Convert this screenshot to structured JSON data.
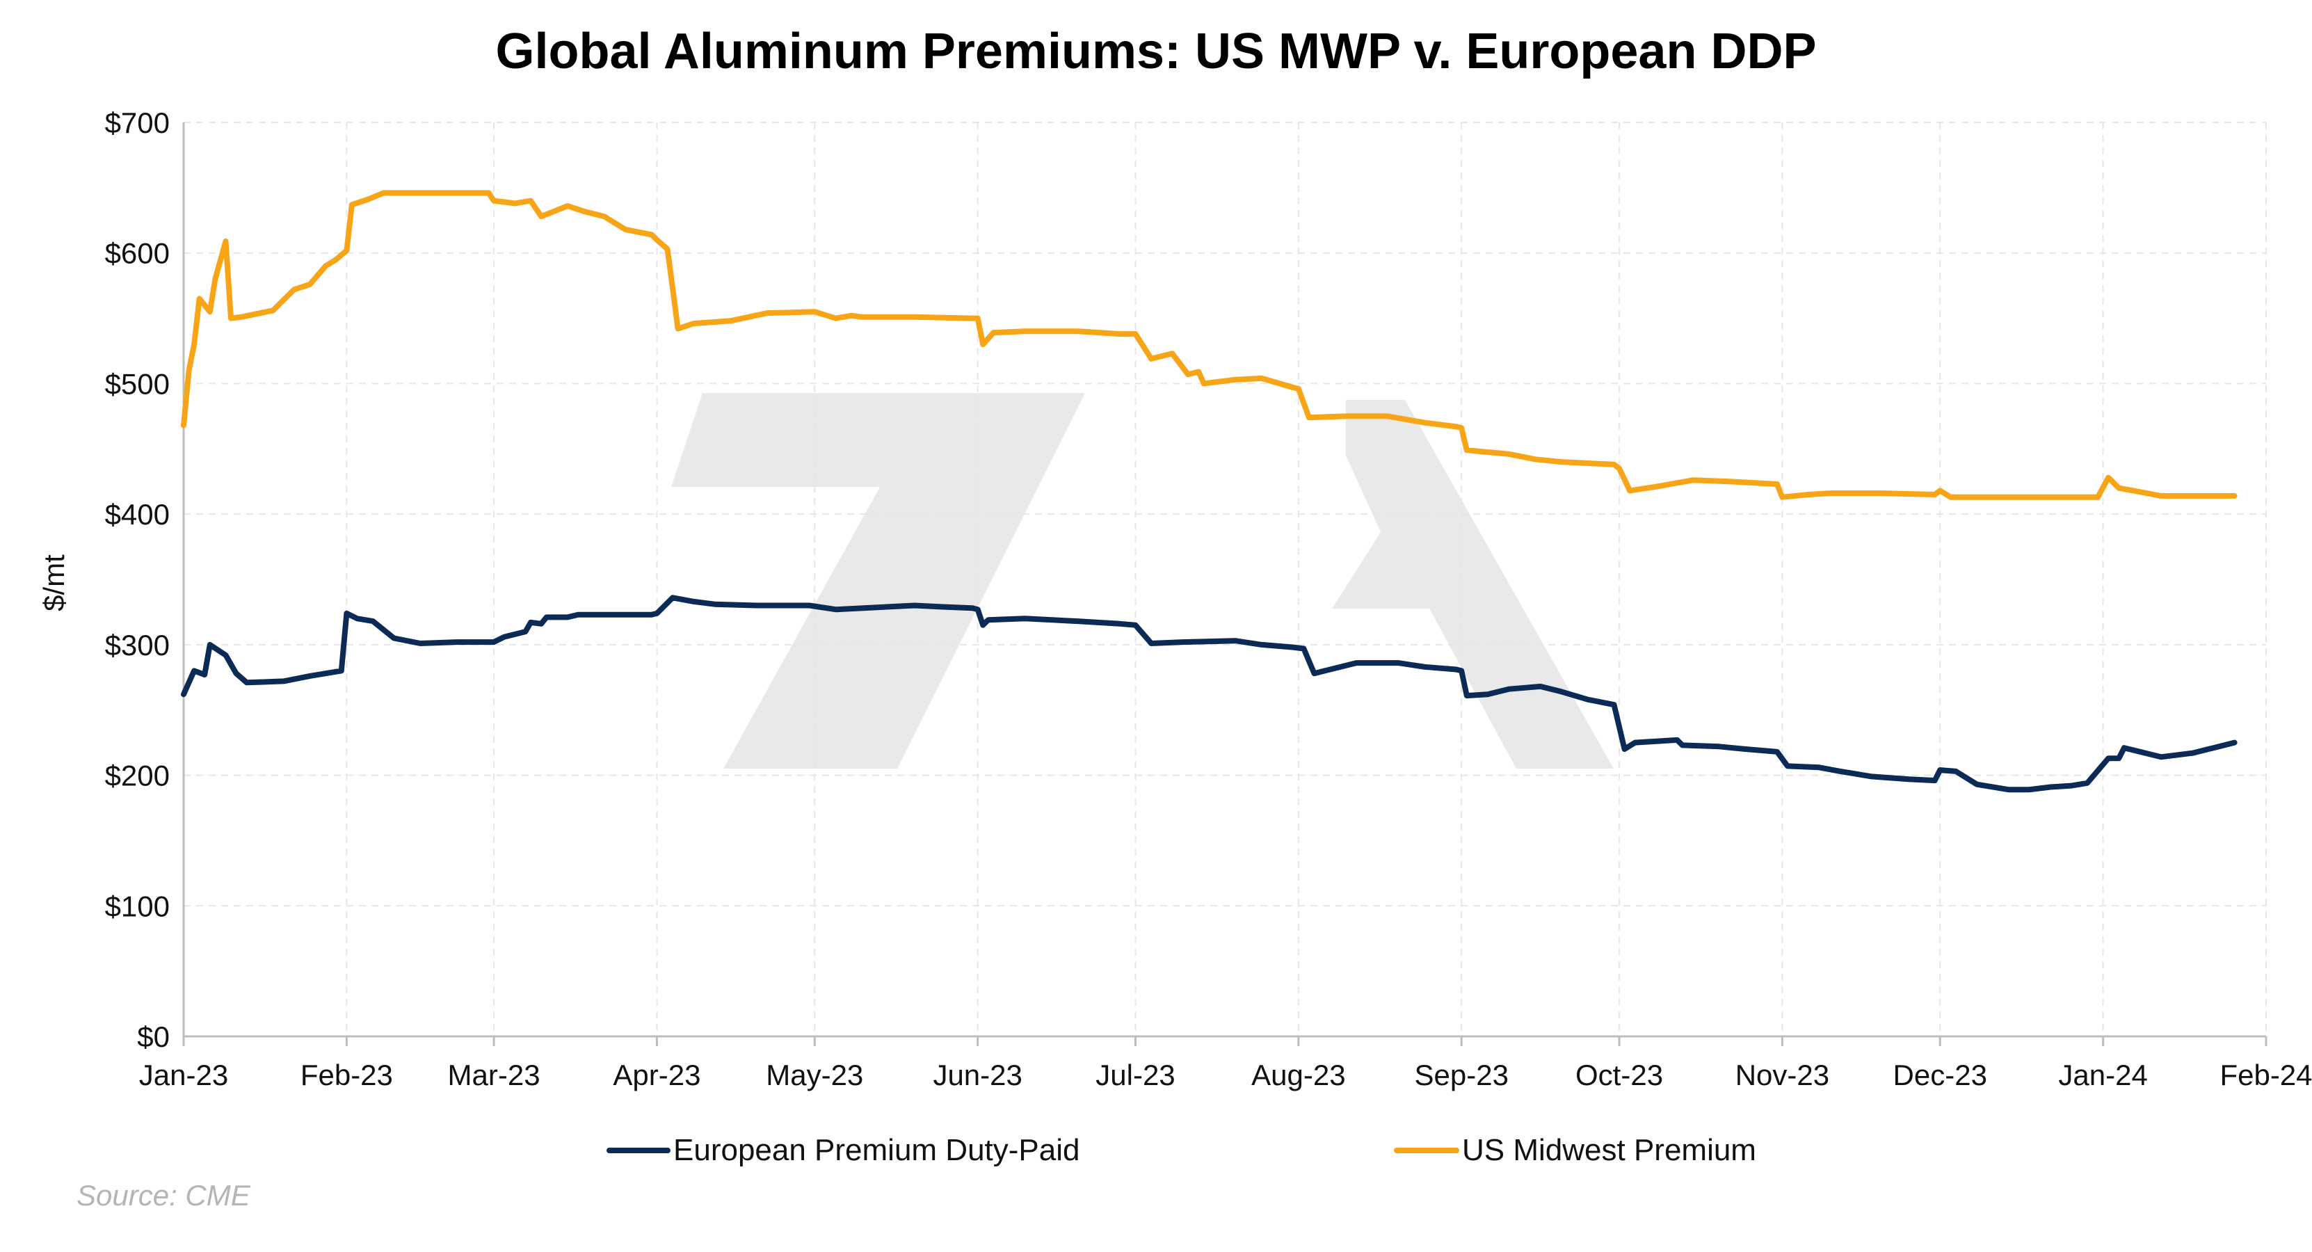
{
  "chart_data": {
    "type": "line",
    "title": "Global Aluminum Premiums: US MWP v. European DDP",
    "ylabel": "$/mt",
    "xlabel": "",
    "ylim": [
      0,
      700
    ],
    "y_ticks": [
      0,
      100,
      200,
      300,
      400,
      500,
      600,
      700
    ],
    "y_tick_labels": [
      "$0",
      "$100",
      "$200",
      "$300",
      "$400",
      "$500",
      "$600",
      "$700"
    ],
    "x_ticks": [
      "2023-01-01",
      "2023-02-01",
      "2023-03-01",
      "2023-04-01",
      "2023-05-01",
      "2023-06-01",
      "2023-07-01",
      "2023-08-01",
      "2023-09-01",
      "2023-10-01",
      "2023-11-01",
      "2023-12-01",
      "2024-01-01",
      "2024-02-01"
    ],
    "x_tick_labels": [
      "Jan-23",
      "Feb-23",
      "Mar-23",
      "Apr-23",
      "May-23",
      "Jun-23",
      "Jul-23",
      "Aug-23",
      "Sep-23",
      "Oct-23",
      "Nov-23",
      "Dec-23",
      "Jan-24",
      "Feb-24"
    ],
    "xlim": [
      "2023-01-01",
      "2024-02-01"
    ],
    "grid": true,
    "legend_position": "bottom",
    "series": [
      {
        "name": "European Premium Duty-Paid",
        "color": "#0b2a55",
        "points": [
          [
            "2023-01-01",
            262
          ],
          [
            "2023-01-03",
            280
          ],
          [
            "2023-01-05",
            277
          ],
          [
            "2023-01-06",
            300
          ],
          [
            "2023-01-09",
            292
          ],
          [
            "2023-01-11",
            278
          ],
          [
            "2023-01-13",
            271
          ],
          [
            "2023-01-20",
            272
          ],
          [
            "2023-01-25",
            276
          ],
          [
            "2023-01-31",
            280
          ],
          [
            "2023-02-01",
            324
          ],
          [
            "2023-02-03",
            320
          ],
          [
            "2023-02-06",
            318
          ],
          [
            "2023-02-10",
            305
          ],
          [
            "2023-02-15",
            301
          ],
          [
            "2023-02-22",
            302
          ],
          [
            "2023-02-28",
            302
          ],
          [
            "2023-03-01",
            302
          ],
          [
            "2023-03-03",
            306
          ],
          [
            "2023-03-07",
            310
          ],
          [
            "2023-03-08",
            317
          ],
          [
            "2023-03-10",
            316
          ],
          [
            "2023-03-11",
            321
          ],
          [
            "2023-03-15",
            321
          ],
          [
            "2023-03-17",
            323
          ],
          [
            "2023-03-25",
            323
          ],
          [
            "2023-03-31",
            323
          ],
          [
            "2023-04-01",
            324
          ],
          [
            "2023-04-04",
            336
          ],
          [
            "2023-04-08",
            333
          ],
          [
            "2023-04-12",
            331
          ],
          [
            "2023-04-20",
            330
          ],
          [
            "2023-04-30",
            330
          ],
          [
            "2023-05-05",
            327
          ],
          [
            "2023-05-15",
            329
          ],
          [
            "2023-05-20",
            330
          ],
          [
            "2023-05-25",
            329
          ],
          [
            "2023-05-31",
            328
          ],
          [
            "2023-06-01",
            327
          ],
          [
            "2023-06-02",
            315
          ],
          [
            "2023-06-03",
            319
          ],
          [
            "2023-06-10",
            320
          ],
          [
            "2023-06-20",
            318
          ],
          [
            "2023-06-28",
            316
          ],
          [
            "2023-07-01",
            315
          ],
          [
            "2023-07-04",
            301
          ],
          [
            "2023-07-10",
            302
          ],
          [
            "2023-07-20",
            303
          ],
          [
            "2023-07-25",
            300
          ],
          [
            "2023-07-31",
            298
          ],
          [
            "2023-08-02",
            297
          ],
          [
            "2023-08-04",
            278
          ],
          [
            "2023-08-08",
            282
          ],
          [
            "2023-08-12",
            286
          ],
          [
            "2023-08-20",
            286
          ],
          [
            "2023-08-25",
            283
          ],
          [
            "2023-08-31",
            281
          ],
          [
            "2023-09-01",
            280
          ],
          [
            "2023-09-02",
            261
          ],
          [
            "2023-09-06",
            262
          ],
          [
            "2023-09-10",
            266
          ],
          [
            "2023-09-13",
            267
          ],
          [
            "2023-09-16",
            268
          ],
          [
            "2023-09-20",
            264
          ],
          [
            "2023-09-25",
            258
          ],
          [
            "2023-09-30",
            254
          ],
          [
            "2023-10-02",
            220
          ],
          [
            "2023-10-04",
            225
          ],
          [
            "2023-10-08",
            226
          ],
          [
            "2023-10-12",
            227
          ],
          [
            "2023-10-13",
            223
          ],
          [
            "2023-10-20",
            222
          ],
          [
            "2023-10-25",
            220
          ],
          [
            "2023-10-31",
            218
          ],
          [
            "2023-11-02",
            207
          ],
          [
            "2023-11-08",
            206
          ],
          [
            "2023-11-12",
            203
          ],
          [
            "2023-11-18",
            199
          ],
          [
            "2023-11-25",
            197
          ],
          [
            "2023-11-30",
            196
          ],
          [
            "2023-12-01",
            204
          ],
          [
            "2023-12-04",
            203
          ],
          [
            "2023-12-08",
            193
          ],
          [
            "2023-12-14",
            189
          ],
          [
            "2023-12-18",
            189
          ],
          [
            "2023-12-22",
            191
          ],
          [
            "2023-12-26",
            192
          ],
          [
            "2023-12-29",
            194
          ],
          [
            "2024-01-02",
            213
          ],
          [
            "2024-01-04",
            213
          ],
          [
            "2024-01-05",
            221
          ],
          [
            "2024-01-08",
            218
          ],
          [
            "2024-01-12",
            214
          ],
          [
            "2024-01-18",
            217
          ],
          [
            "2024-01-22",
            221
          ],
          [
            "2024-01-26",
            225
          ]
        ]
      },
      {
        "name": "US Midwest Premium",
        "color": "#f7a416",
        "points": [
          [
            "2023-01-01",
            468
          ],
          [
            "2023-01-02",
            510
          ],
          [
            "2023-01-03",
            530
          ],
          [
            "2023-01-04",
            565
          ],
          [
            "2023-01-06",
            555
          ],
          [
            "2023-01-07",
            580
          ],
          [
            "2023-01-09",
            609
          ],
          [
            "2023-01-10",
            550
          ],
          [
            "2023-01-12",
            551
          ],
          [
            "2023-01-18",
            556
          ],
          [
            "2023-01-22",
            572
          ],
          [
            "2023-01-25",
            576
          ],
          [
            "2023-01-28",
            590
          ],
          [
            "2023-01-30",
            595
          ],
          [
            "2023-02-01",
            602
          ],
          [
            "2023-02-02",
            637
          ],
          [
            "2023-02-05",
            641
          ],
          [
            "2023-02-08",
            646
          ],
          [
            "2023-02-15",
            646
          ],
          [
            "2023-02-22",
            646
          ],
          [
            "2023-02-28",
            646
          ],
          [
            "2023-03-01",
            640
          ],
          [
            "2023-03-05",
            638
          ],
          [
            "2023-03-08",
            640
          ],
          [
            "2023-03-10",
            628
          ],
          [
            "2023-03-15",
            636
          ],
          [
            "2023-03-18",
            632
          ],
          [
            "2023-03-22",
            628
          ],
          [
            "2023-03-26",
            618
          ],
          [
            "2023-03-31",
            614
          ],
          [
            "2023-04-01",
            610
          ],
          [
            "2023-04-03",
            603
          ],
          [
            "2023-04-05",
            542
          ],
          [
            "2023-04-08",
            546
          ],
          [
            "2023-04-15",
            548
          ],
          [
            "2023-04-22",
            554
          ],
          [
            "2023-05-01",
            555
          ],
          [
            "2023-05-05",
            550
          ],
          [
            "2023-05-08",
            552
          ],
          [
            "2023-05-10",
            551
          ],
          [
            "2023-05-20",
            551
          ],
          [
            "2023-05-31",
            550
          ],
          [
            "2023-06-01",
            550
          ],
          [
            "2023-06-02",
            530
          ],
          [
            "2023-06-04",
            539
          ],
          [
            "2023-06-10",
            540
          ],
          [
            "2023-06-20",
            540
          ],
          [
            "2023-06-28",
            538
          ],
          [
            "2023-07-01",
            538
          ],
          [
            "2023-07-04",
            519
          ],
          [
            "2023-07-08",
            523
          ],
          [
            "2023-07-11",
            507
          ],
          [
            "2023-07-13",
            509
          ],
          [
            "2023-07-14",
            500
          ],
          [
            "2023-07-20",
            503
          ],
          [
            "2023-07-25",
            504
          ],
          [
            "2023-07-31",
            497
          ],
          [
            "2023-08-01",
            496
          ],
          [
            "2023-08-03",
            474
          ],
          [
            "2023-08-10",
            475
          ],
          [
            "2023-08-18",
            475
          ],
          [
            "2023-08-25",
            470
          ],
          [
            "2023-08-31",
            467
          ],
          [
            "2023-09-01",
            466
          ],
          [
            "2023-09-02",
            449
          ],
          [
            "2023-09-10",
            446
          ],
          [
            "2023-09-15",
            442
          ],
          [
            "2023-09-20",
            440
          ],
          [
            "2023-09-30",
            438
          ],
          [
            "2023-10-01",
            435
          ],
          [
            "2023-10-03",
            418
          ],
          [
            "2023-10-08",
            421
          ],
          [
            "2023-10-15",
            426
          ],
          [
            "2023-10-22",
            425
          ],
          [
            "2023-10-31",
            423
          ],
          [
            "2023-11-01",
            413
          ],
          [
            "2023-11-06",
            415
          ],
          [
            "2023-11-10",
            416
          ],
          [
            "2023-11-20",
            416
          ],
          [
            "2023-11-30",
            415
          ],
          [
            "2023-12-01",
            418
          ],
          [
            "2023-12-03",
            413
          ],
          [
            "2023-12-10",
            413
          ],
          [
            "2023-12-20",
            413
          ],
          [
            "2023-12-31",
            413
          ],
          [
            "2024-01-02",
            428
          ],
          [
            "2024-01-04",
            420
          ],
          [
            "2024-01-08",
            417
          ],
          [
            "2024-01-12",
            414
          ],
          [
            "2024-01-18",
            414
          ],
          [
            "2024-01-26",
            414
          ]
        ]
      }
    ],
    "source": "Source: CME"
  }
}
